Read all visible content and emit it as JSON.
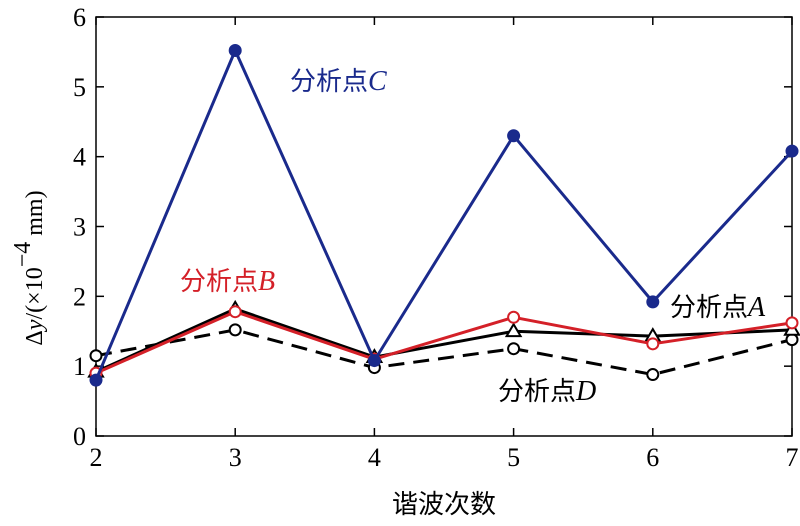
{
  "chart_data": {
    "type": "line",
    "x": [
      2,
      3,
      4,
      5,
      6,
      7
    ],
    "xlim": [
      2,
      7
    ],
    "ylim": [
      0,
      6
    ],
    "xticks": [
      "2",
      "3",
      "4",
      "5",
      "6",
      "7"
    ],
    "yticks": [
      "0",
      "1",
      "2",
      "3",
      "4",
      "5",
      "6"
    ],
    "xlabel": "谐波次数",
    "ylabel": {
      "delta": "Δ",
      "var": "y",
      "open": "/(×10",
      "exp": "−4",
      "unit": " mm)"
    },
    "grid": false,
    "series": [
      {
        "name_prefix": "分析点",
        "name_letter": "C",
        "color": "#1a2a8c",
        "marker": "filled-circle",
        "dash": "solid",
        "values": [
          0.8,
          5.52,
          1.08,
          4.3,
          1.92,
          4.08
        ]
      },
      {
        "name_prefix": "分析点",
        "name_letter": "B",
        "color": "#d42028",
        "marker": "open-circle",
        "dash": "solid",
        "values": [
          0.9,
          1.78,
          1.1,
          1.7,
          1.32,
          1.62
        ]
      },
      {
        "name_prefix": "分析点",
        "name_letter": "A",
        "color": "#000000",
        "marker": "open-triangle",
        "dash": "solid",
        "values": [
          0.92,
          1.82,
          1.13,
          1.5,
          1.43,
          1.52
        ]
      },
      {
        "name_prefix": "分析点",
        "name_letter": "D",
        "color": "#000000",
        "marker": "open-circle",
        "dash": "dashed",
        "values": [
          1.15,
          1.52,
          0.98,
          1.25,
          0.88,
          1.38
        ]
      }
    ]
  }
}
